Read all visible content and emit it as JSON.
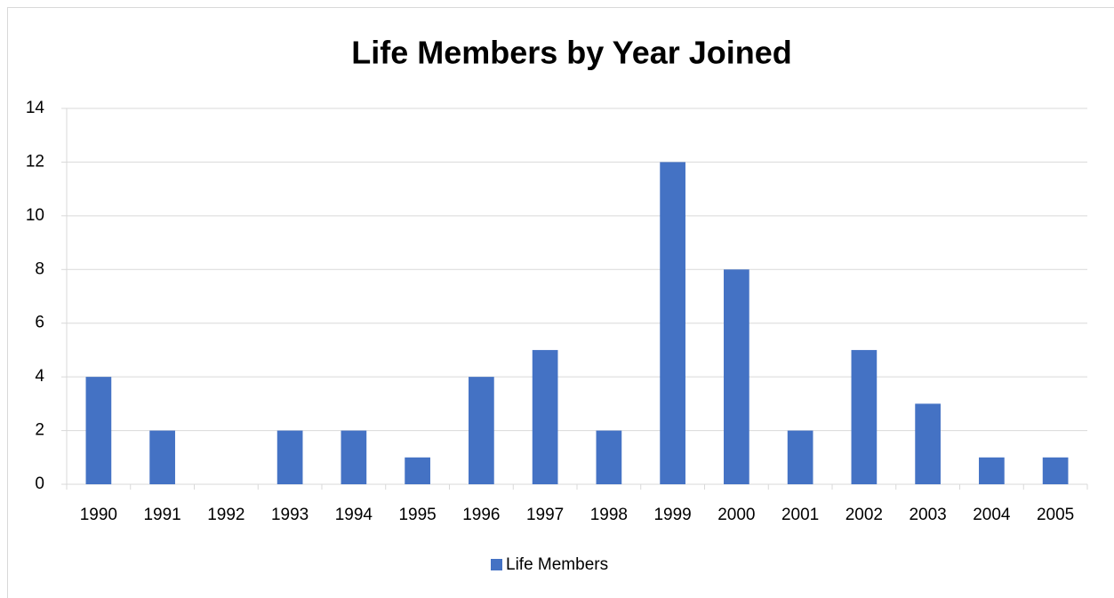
{
  "chart_data": {
    "type": "bar",
    "title": "Life Members by Year Joined",
    "categories": [
      "1990",
      "1991",
      "1992",
      "1993",
      "1994",
      "1995",
      "1996",
      "1997",
      "1998",
      "1999",
      "2000",
      "2001",
      "2002",
      "2003",
      "2004",
      "2005"
    ],
    "series": [
      {
        "name": "Life Members",
        "color": "#4472c4",
        "values": [
          4,
          2,
          0,
          2,
          2,
          1,
          4,
          5,
          2,
          12,
          8,
          2,
          5,
          3,
          1,
          1
        ]
      }
    ],
    "ylim": [
      0,
      14
    ],
    "yticks": [
      0,
      2,
      4,
      6,
      8,
      10,
      12,
      14
    ],
    "grid": true,
    "legend": "bottom"
  }
}
